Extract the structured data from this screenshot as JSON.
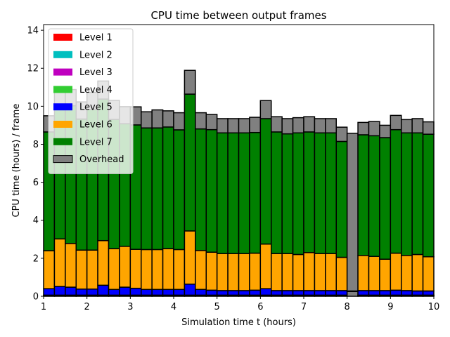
{
  "chart_data": {
    "type": "bar",
    "stacked": true,
    "title": "CPU time between output frames",
    "xlabel": "Simulation time t (hours)",
    "ylabel": "CPU time (hours) / frame",
    "xlim": [
      1,
      10
    ],
    "ylim": [
      0,
      14.3
    ],
    "xticks": [
      "1",
      "2",
      "3",
      "4",
      "5",
      "6",
      "7",
      "8",
      "9",
      "10"
    ],
    "yticks": [
      "0",
      "2",
      "4",
      "6",
      "8",
      "10",
      "12",
      "14"
    ],
    "bar_width": 0.25,
    "legend_position": "upper-left",
    "x": [
      1.0,
      1.25,
      1.5,
      1.75,
      2.0,
      2.25,
      2.5,
      2.75,
      3.0,
      3.25,
      3.5,
      3.75,
      4.0,
      4.25,
      4.5,
      4.75,
      5.0,
      5.25,
      5.5,
      5.75,
      6.0,
      6.25,
      6.5,
      6.75,
      7.0,
      7.25,
      7.5,
      7.75,
      8.0,
      8.25,
      8.5,
      8.75,
      9.0,
      9.25,
      9.5,
      9.75
    ],
    "series": [
      {
        "name": "Level 1",
        "color": "#ff0000",
        "values": [
          0.02,
          0.02,
          0.02,
          0.02,
          0.02,
          0.02,
          0.02,
          0.02,
          0.02,
          0.02,
          0.02,
          0.02,
          0.02,
          0.02,
          0.02,
          0.02,
          0.02,
          0.02,
          0.02,
          0.02,
          0.02,
          0.02,
          0.02,
          0.02,
          0.02,
          0.02,
          0.02,
          0.02,
          0.02,
          0.02,
          0.02,
          0.02,
          0.02,
          0.02,
          0.02,
          0.02
        ]
      },
      {
        "name": "Level 2",
        "color": "#00bfbf",
        "values": [
          0.01,
          0.01,
          0.01,
          0.01,
          0.01,
          0.01,
          0.01,
          0.01,
          0.01,
          0.01,
          0.01,
          0.01,
          0.01,
          0.01,
          0.01,
          0.01,
          0.01,
          0.01,
          0.01,
          0.01,
          0.01,
          0.01,
          0.01,
          0.01,
          0.01,
          0.01,
          0.01,
          0.01,
          0.01,
          0.01,
          0.01,
          0.01,
          0.01,
          0.01,
          0.01,
          0.01
        ]
      },
      {
        "name": "Level 3",
        "color": "#bf00bf",
        "values": [
          0.01,
          0.01,
          0.01,
          0.01,
          0.01,
          0.01,
          0.01,
          0.01,
          0.01,
          0.01,
          0.01,
          0.01,
          0.01,
          0.01,
          0.01,
          0.01,
          0.01,
          0.01,
          0.01,
          0.01,
          0.01,
          0.01,
          0.01,
          0.01,
          0.01,
          0.01,
          0.01,
          0.01,
          0.0,
          0.01,
          0.01,
          0.01,
          0.01,
          0.01,
          0.01,
          0.01
        ]
      },
      {
        "name": "Level 4",
        "color": "#32cd32",
        "values": [
          0.02,
          0.02,
          0.02,
          0.02,
          0.02,
          0.02,
          0.02,
          0.02,
          0.02,
          0.02,
          0.02,
          0.02,
          0.02,
          0.02,
          0.02,
          0.02,
          0.02,
          0.02,
          0.02,
          0.02,
          0.02,
          0.02,
          0.02,
          0.02,
          0.02,
          0.02,
          0.02,
          0.02,
          0.0,
          0.02,
          0.02,
          0.02,
          0.02,
          0.02,
          0.02,
          0.02
        ]
      },
      {
        "name": "Level 5",
        "color": "#0000ff",
        "values": [
          0.34,
          0.46,
          0.42,
          0.32,
          0.32,
          0.52,
          0.3,
          0.42,
          0.36,
          0.3,
          0.3,
          0.3,
          0.3,
          0.58,
          0.3,
          0.26,
          0.24,
          0.24,
          0.24,
          0.26,
          0.34,
          0.24,
          0.24,
          0.24,
          0.24,
          0.24,
          0.24,
          0.24,
          0.0,
          0.24,
          0.24,
          0.24,
          0.26,
          0.24,
          0.22,
          0.22
        ]
      },
      {
        "name": "Level 6",
        "color": "#ffa500",
        "values": [
          2.0,
          2.5,
          2.3,
          2.05,
          2.05,
          2.35,
          2.15,
          2.15,
          2.05,
          2.1,
          2.1,
          2.15,
          2.1,
          2.8,
          2.05,
          2.0,
          1.95,
          1.95,
          1.95,
          1.95,
          2.35,
          1.95,
          1.95,
          1.9,
          2.0,
          1.95,
          1.95,
          1.75,
          0.0,
          1.85,
          1.8,
          1.65,
          1.95,
          1.85,
          1.92,
          1.8
        ]
      },
      {
        "name": "Level 7",
        "color": "#008000",
        "values": [
          6.25,
          7.0,
          7.25,
          6.9,
          7.4,
          7.45,
          6.8,
          6.45,
          6.55,
          6.4,
          6.4,
          6.4,
          6.3,
          7.2,
          6.4,
          6.45,
          6.35,
          6.35,
          6.35,
          6.35,
          6.6,
          6.4,
          6.3,
          6.4,
          6.35,
          6.35,
          6.35,
          6.1,
          0.0,
          6.35,
          6.35,
          6.4,
          6.5,
          6.45,
          6.4,
          6.45
        ]
      },
      {
        "name": "Overhead",
        "color": "#808080",
        "values": [
          0.85,
          0.95,
          0.85,
          0.9,
          0.9,
          0.95,
          1.0,
          0.9,
          0.95,
          0.85,
          0.95,
          0.85,
          0.9,
          1.25,
          0.85,
          0.8,
          0.75,
          0.75,
          0.75,
          0.8,
          0.95,
          0.8,
          0.8,
          0.8,
          0.8,
          0.75,
          0.75,
          0.75,
          8.3,
          0.65,
          0.75,
          0.65,
          0.75,
          0.7,
          0.75,
          0.65
        ]
      }
    ],
    "bar_overrides": {
      "note": "",
      "grey_bottom_index": 28,
      "grey_bottom_value": 0.25
    }
  }
}
